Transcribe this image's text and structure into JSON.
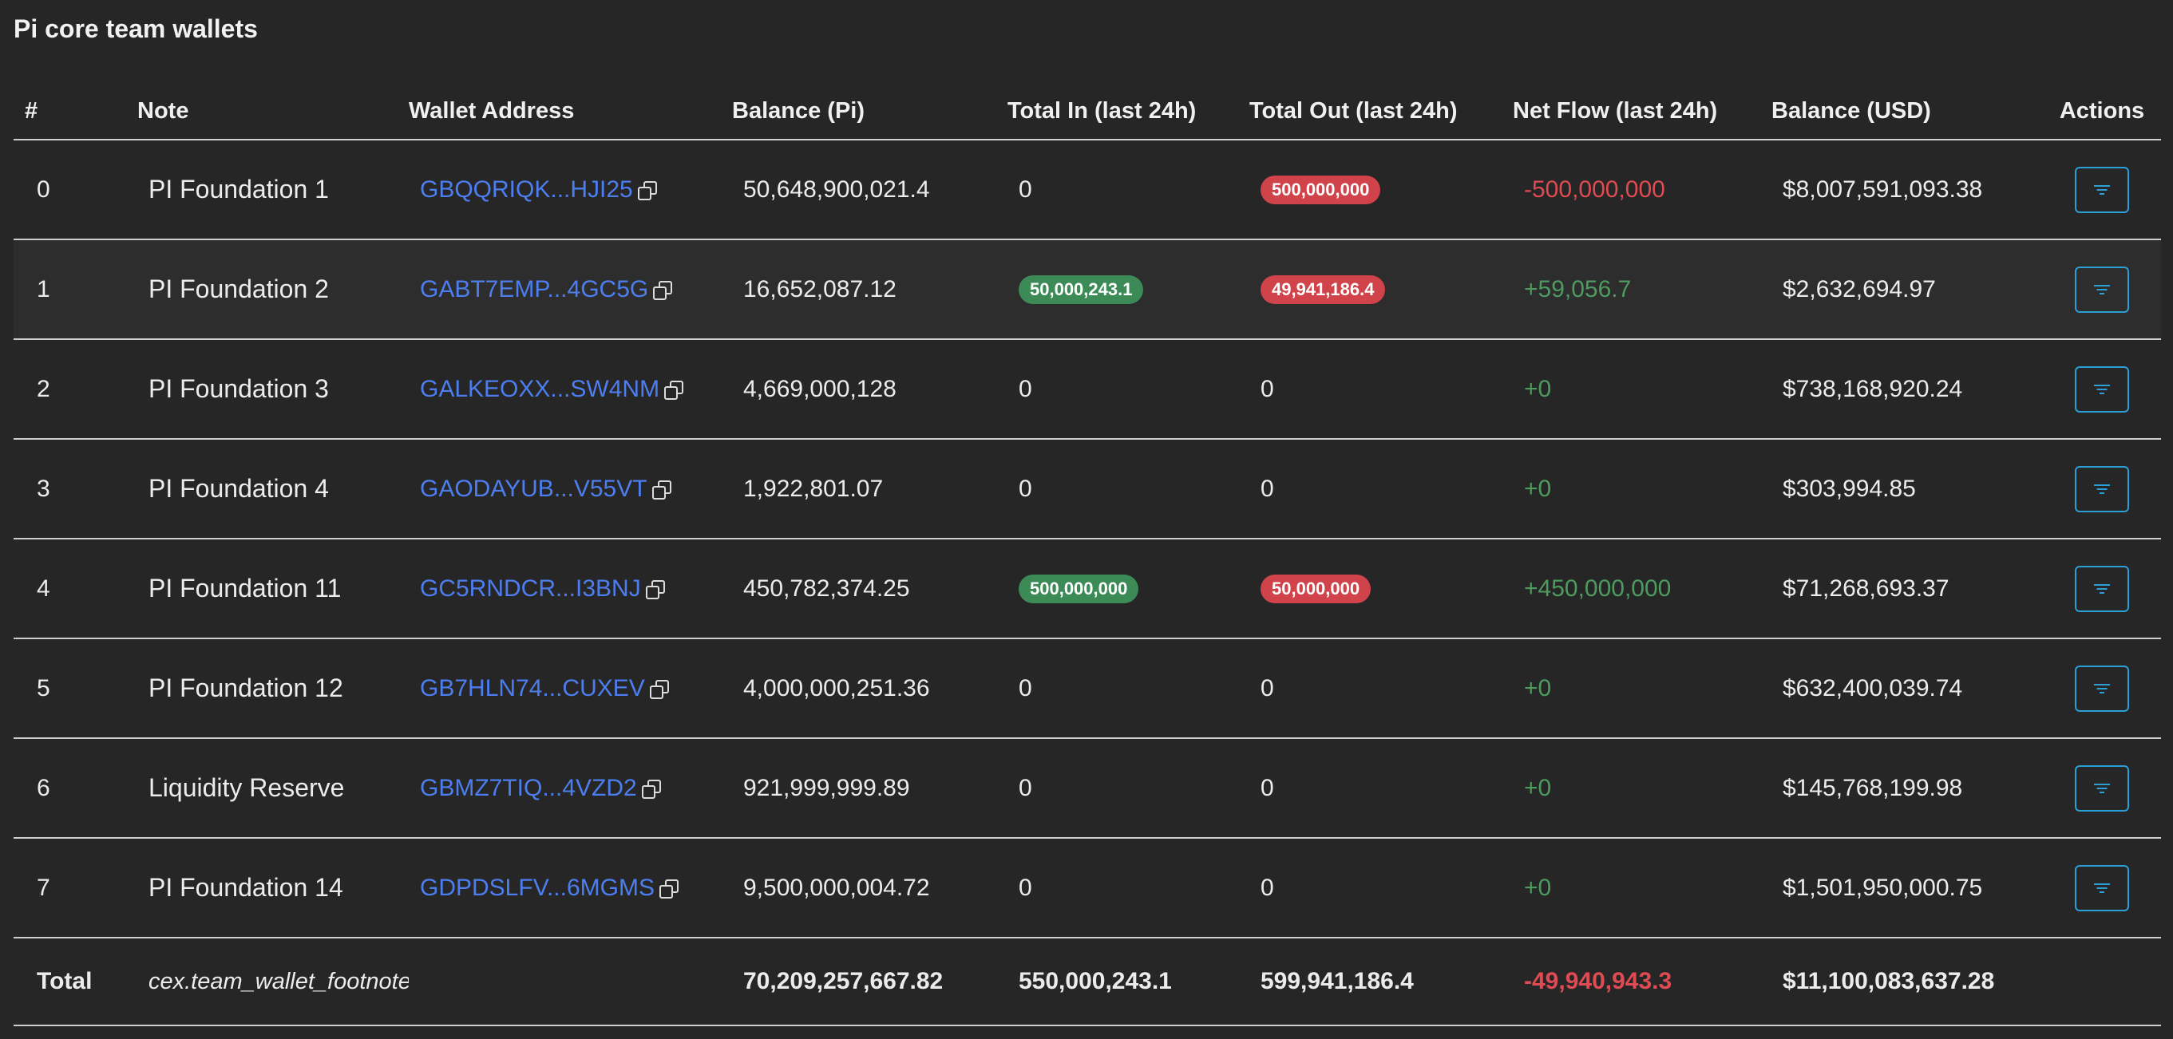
{
  "title": "Pi core team wallets",
  "columns": {
    "num": "#",
    "note": "Note",
    "address": "Wallet Address",
    "balance_pi": "Balance (Pi)",
    "total_in": "Total In (last 24h)",
    "total_out": "Total Out (last 24h)",
    "net_flow": "Net Flow (last 24h)",
    "balance_usd": "Balance (USD)",
    "actions": "Actions"
  },
  "rows": [
    {
      "num": "0",
      "note": "PI Foundation 1",
      "address": "GBQQRIQK...HJI25",
      "balance_pi": "50,648,900,021.4",
      "total_in": "0",
      "total_out": "500,000,000",
      "net_flow": "-500,000,000",
      "balance_usd": "$8,007,591,093.38"
    },
    {
      "num": "1",
      "note": "PI Foundation 2",
      "address": "GABT7EMP...4GC5G",
      "balance_pi": "16,652,087.12",
      "total_in": "50,000,243.1",
      "total_out": "49,941,186.4",
      "net_flow": "+59,056.7",
      "balance_usd": "$2,632,694.97"
    },
    {
      "num": "2",
      "note": "PI Foundation 3",
      "address": "GALKEOXX...SW4NM",
      "balance_pi": "4,669,000,128",
      "total_in": "0",
      "total_out": "0",
      "net_flow": "+0",
      "balance_usd": "$738,168,920.24"
    },
    {
      "num": "3",
      "note": "PI Foundation 4",
      "address": "GAODAYUB...V55VT",
      "balance_pi": "1,922,801.07",
      "total_in": "0",
      "total_out": "0",
      "net_flow": "+0",
      "balance_usd": "$303,994.85"
    },
    {
      "num": "4",
      "note": "PI Foundation 11",
      "address": "GC5RNDCR...I3BNJ",
      "balance_pi": "450,782,374.25",
      "total_in": "500,000,000",
      "total_out": "50,000,000",
      "net_flow": "+450,000,000",
      "balance_usd": "$71,268,693.37"
    },
    {
      "num": "5",
      "note": "PI Foundation 12",
      "address": "GB7HLN74...CUXEV",
      "balance_pi": "4,000,000,251.36",
      "total_in": "0",
      "total_out": "0",
      "net_flow": "+0",
      "balance_usd": "$632,400,039.74"
    },
    {
      "num": "6",
      "note": "Liquidity Reserve",
      "address": "GBMZ7TIQ...4VZD2",
      "balance_pi": "921,999,999.89",
      "total_in": "0",
      "total_out": "0",
      "net_flow": "+0",
      "balance_usd": "$145,768,199.98"
    },
    {
      "num": "7",
      "note": "PI Foundation 14",
      "address": "GDPDSLFV...6MGMS",
      "balance_pi": "9,500,000,004.72",
      "total_in": "0",
      "total_out": "0",
      "net_flow": "+0",
      "balance_usd": "$1,501,950,000.75"
    }
  ],
  "total": {
    "label": "Total",
    "note": "cex.team_wallet_footnote",
    "balance_pi": "70,209,257,667.82",
    "total_in": "550,000,243.1",
    "total_out": "599,941,186.4",
    "net_flow": "-49,940,943.3",
    "balance_usd": "$11,100,083,637.28"
  },
  "colors": {
    "background": "#262626",
    "link": "#4d7ef0",
    "badge_in": "#3c8b57",
    "badge_out": "#d0434a",
    "positive": "#4d9b5f",
    "negative": "#de4b52",
    "action_border": "#2b9fd6"
  },
  "icons": {
    "copy": "copy-icon",
    "action": "filter-icon"
  }
}
